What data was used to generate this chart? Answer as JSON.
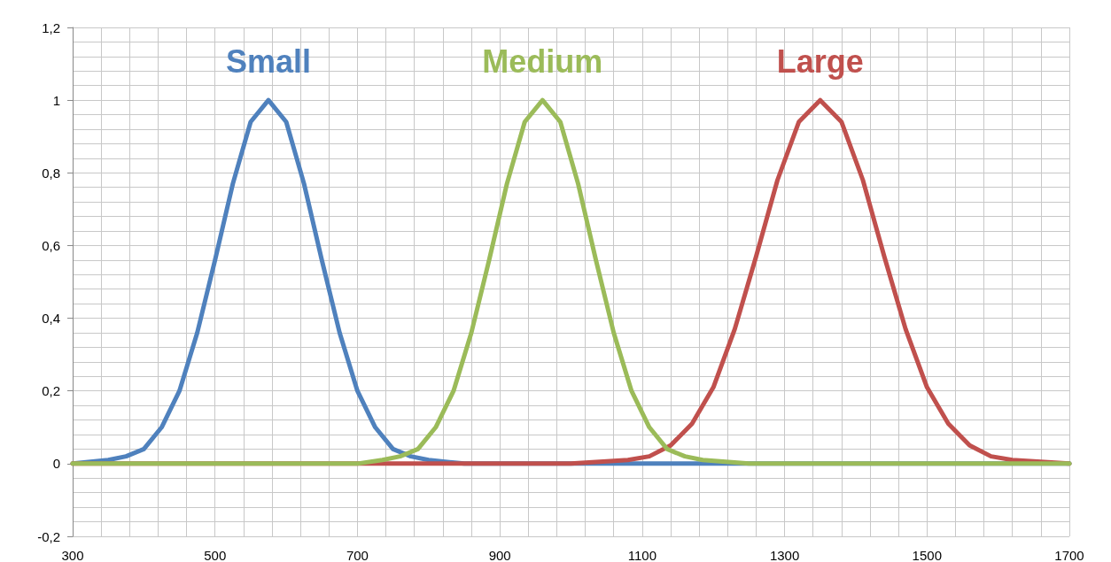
{
  "chart_data": {
    "type": "line",
    "xlim": [
      300,
      1700
    ],
    "xticks": [
      300,
      500,
      700,
      900,
      1100,
      1300,
      1500,
      1700
    ],
    "ylim": [
      -0.2,
      1.2
    ],
    "yticks": [
      {
        "value": -0.2,
        "label": "-0,2"
      },
      0,
      {
        "value": 0.2,
        "label": "0,2"
      },
      {
        "value": 0.4,
        "label": "0,4"
      },
      {
        "value": 0.6,
        "label": "0,6"
      },
      {
        "value": 0.8,
        "label": "0,8"
      },
      1,
      {
        "value": 1.2,
        "label": "1,2"
      }
    ],
    "grid": true,
    "marker": "none",
    "line_style": "solid",
    "legend": false,
    "series": [
      {
        "name": "Small",
        "color": "#4f81bd",
        "x": [
          300,
          350,
          375,
          400,
          425,
          450,
          475,
          500,
          525,
          550,
          575,
          600,
          625,
          650,
          675,
          700,
          725,
          750,
          775,
          800,
          850,
          1700
        ],
        "values": [
          0,
          0.01,
          0.02,
          0.04,
          0.1,
          0.2,
          0.36,
          0.56,
          0.77,
          0.94,
          1,
          0.94,
          0.77,
          0.56,
          0.36,
          0.2,
          0.1,
          0.04,
          0.02,
          0.01,
          0,
          0
        ]
      },
      {
        "name": "Large",
        "color": "#c0504d",
        "x": [
          300,
          1000,
          1080,
          1110,
          1140,
          1170,
          1200,
          1230,
          1260,
          1290,
          1320,
          1350,
          1380,
          1410,
          1440,
          1470,
          1500,
          1530,
          1560,
          1590,
          1620,
          1700
        ],
        "values": [
          0,
          0,
          0.01,
          0.02,
          0.05,
          0.11,
          0.21,
          0.37,
          0.57,
          0.78,
          0.94,
          1,
          0.94,
          0.78,
          0.57,
          0.37,
          0.21,
          0.11,
          0.05,
          0.02,
          0.01,
          0
        ]
      },
      {
        "name": "Medium",
        "color": "#9bbb59",
        "x": [
          300,
          700,
          735,
          760,
          785,
          810,
          835,
          860,
          885,
          910,
          935,
          960,
          985,
          1010,
          1035,
          1060,
          1085,
          1110,
          1135,
          1160,
          1185,
          1250,
          1700
        ],
        "values": [
          0,
          0,
          0.01,
          0.02,
          0.04,
          0.1,
          0.2,
          0.36,
          0.56,
          0.77,
          0.94,
          1,
          0.94,
          0.77,
          0.56,
          0.36,
          0.2,
          0.1,
          0.04,
          0.02,
          0.01,
          0,
          0
        ]
      }
    ]
  }
}
